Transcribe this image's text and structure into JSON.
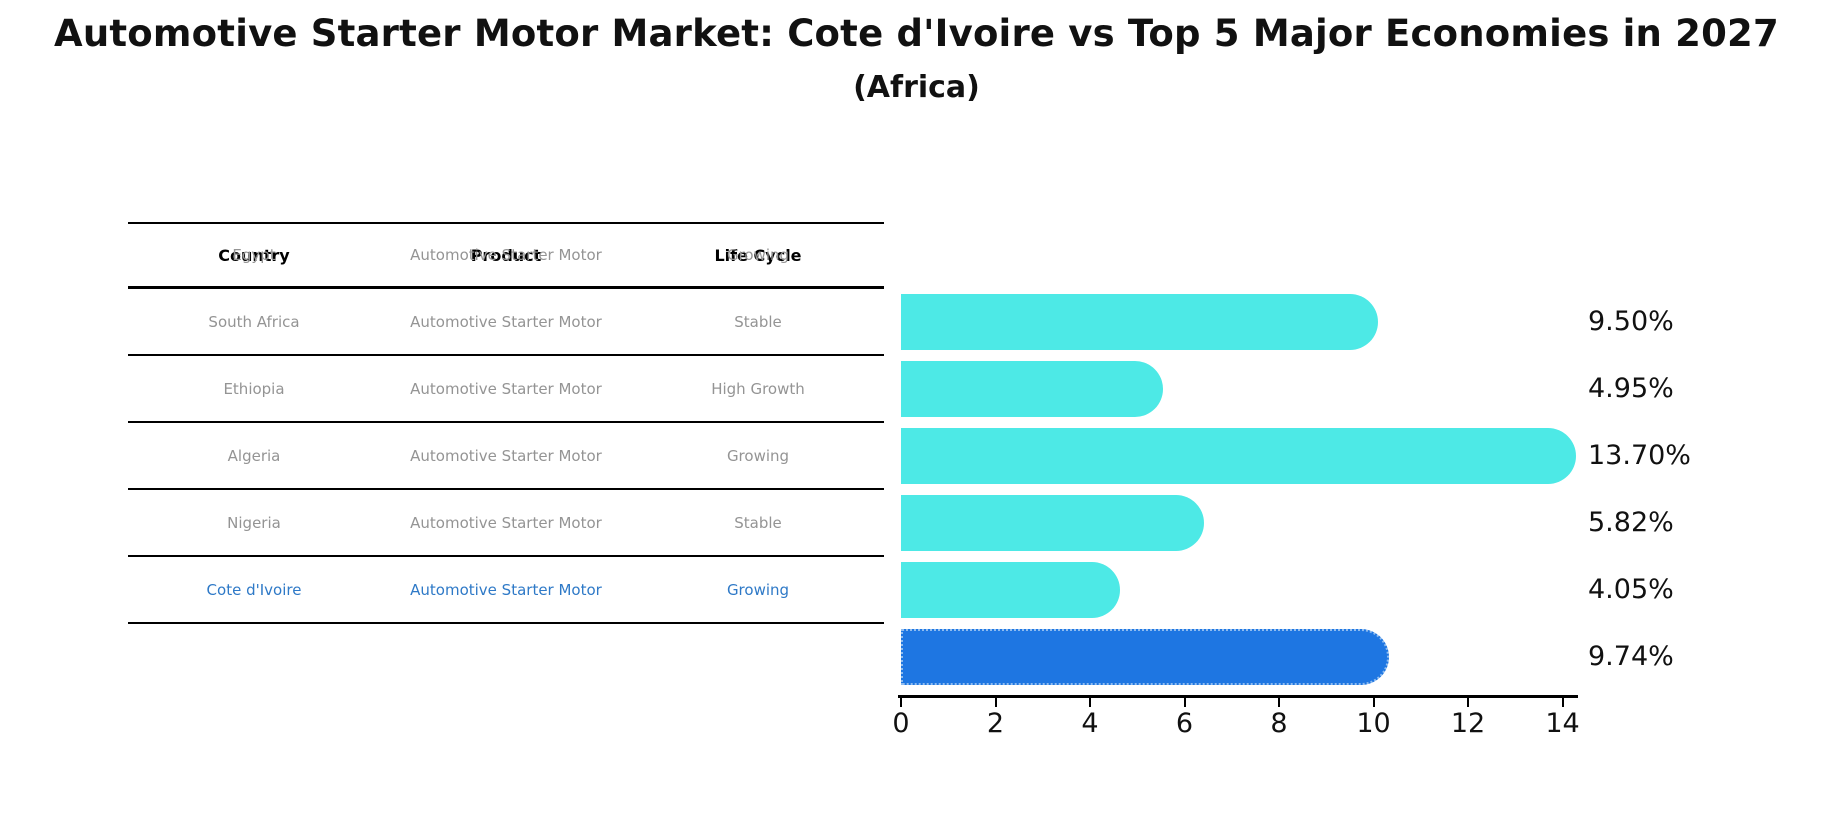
{
  "title": "Automotive Starter Motor Market: Cote d'Ivoire vs Top 5 Major Economies in 2027",
  "subtitle": "(Africa)",
  "colors": {
    "bar_default": "#4de9e6",
    "bar_highlight": "#1e76e2",
    "highlight_border": "#8fbcef",
    "highlight_text": "#2e79c7",
    "row_text": "#949494",
    "header_text": "#000000",
    "axis_text": "#111111"
  },
  "table": {
    "headers": [
      "Country",
      "Product",
      "Life Cycle"
    ],
    "rows": [
      {
        "country": "Egypt",
        "product": "Automotive Starter Motor",
        "life_cycle": "Growing",
        "highlight": false
      },
      {
        "country": "South Africa",
        "product": "Automotive Starter Motor",
        "life_cycle": "Stable",
        "highlight": false
      },
      {
        "country": "Ethiopia",
        "product": "Automotive Starter Motor",
        "life_cycle": "High Growth",
        "highlight": false
      },
      {
        "country": "Algeria",
        "product": "Automotive Starter Motor",
        "life_cycle": "Growing",
        "highlight": false
      },
      {
        "country": "Nigeria",
        "product": "Automotive Starter Motor",
        "life_cycle": "Stable",
        "highlight": false
      },
      {
        "country": "Cote d'Ivoire",
        "product": "Automotive Starter Motor",
        "life_cycle": "Growing",
        "highlight": true
      }
    ]
  },
  "chart_data": {
    "type": "bar",
    "orientation": "horizontal",
    "title": "Automotive Starter Motor Market: Cote d'Ivoire vs Top 5 Major Economies in 2027 (Africa)",
    "categories": [
      "Egypt",
      "South Africa",
      "Ethiopia",
      "Algeria",
      "Nigeria",
      "Cote d'Ivoire"
    ],
    "values": [
      9.5,
      4.95,
      13.7,
      5.82,
      4.05,
      9.74
    ],
    "value_labels": [
      "9.50%",
      "4.95%",
      "13.70%",
      "5.82%",
      "4.05%",
      "9.74%"
    ],
    "highlight_index": 5,
    "xlabel": "",
    "ylabel": "",
    "xlim": [
      0,
      14.4
    ],
    "xticks": [
      0,
      2,
      4,
      6,
      8,
      10,
      12,
      14
    ],
    "grid": false,
    "legend": false
  }
}
